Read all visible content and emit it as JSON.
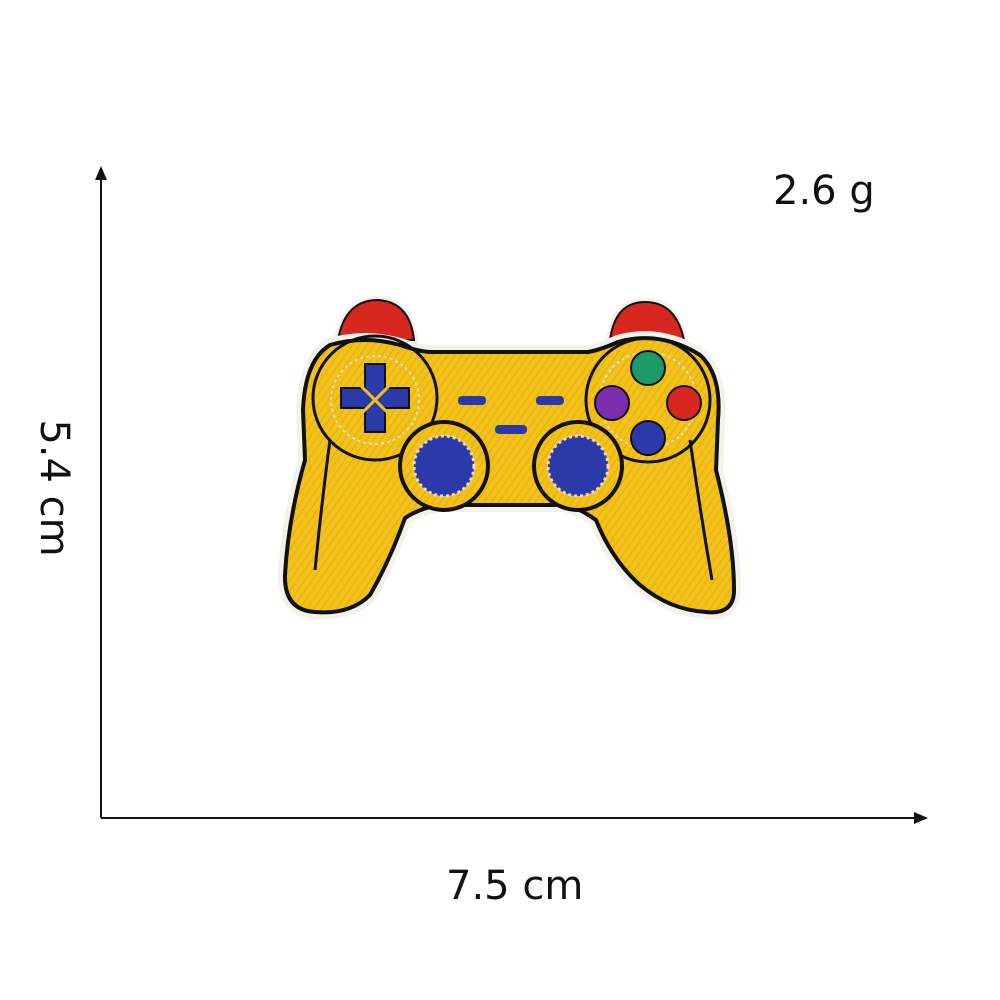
{
  "labels": {
    "weight": "2.6 g",
    "height": "5.4 cm",
    "width": "7.5 cm"
  },
  "colors": {
    "background": "#ffffff",
    "axis": "#111111",
    "patch_body": "#f2c21b",
    "patch_outline": "#111111",
    "patch_border": "#f4f1ea",
    "shoulder_buttons": "#d8271e",
    "dpad": "#2b3aa8",
    "thumbsticks": "#2b3aa8",
    "face_button_top": "#1e9a6a",
    "face_button_left": "#7b2fb0",
    "face_button_right": "#d8271e",
    "face_button_bottom": "#2b3aa8"
  },
  "image": {
    "subject": "embroidered-game-controller-patch"
  }
}
